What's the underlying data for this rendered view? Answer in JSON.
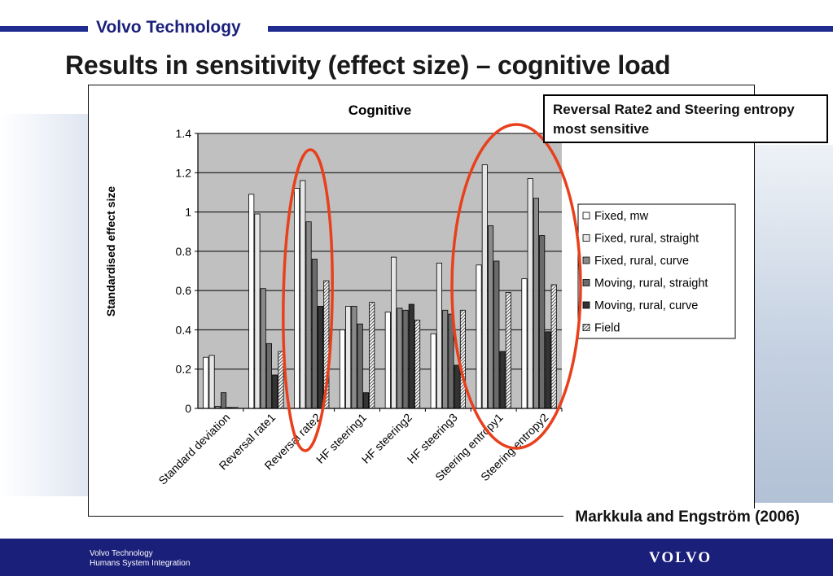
{
  "header": {
    "company": "Volvo Technology",
    "title": "Results in sensitivity (effect size) – cognitive load",
    "rule_color": "#1f2b8f"
  },
  "callout": {
    "text": "Reversal Rate2 and Steering entropy most sensitive",
    "highlight_color": "#e8401c"
  },
  "citation": "Markkula and Engström (2006)",
  "footer": {
    "line1": "Volvo Technology",
    "line2": "Humans System Integration",
    "logo": "VOLVO",
    "background": "#1a1f7a"
  },
  "chart_data": {
    "type": "bar",
    "title": "Cognitive",
    "xlabel": "",
    "ylabel": "Standardised effect size",
    "ylim": [
      0,
      1.4
    ],
    "yticks": [
      "0",
      "0.2",
      "0.4",
      "0.6",
      "0.8",
      "1",
      "1.2",
      "1.4"
    ],
    "grid": true,
    "plot_background": "#c0c0c0",
    "legend_position": "right",
    "categories": [
      "Standard deviation",
      "Reversal rate1",
      "Reversal rate2",
      "HF steering1",
      "HF steering2",
      "HF steering3",
      "Steering entropy1",
      "Steering entropy2"
    ],
    "series": [
      {
        "name": "Fixed, mw",
        "color": "#ffffff",
        "pattern": "solid",
        "values": [
          0.26,
          1.09,
          1.12,
          0.4,
          0.49,
          0.38,
          0.73,
          0.66
        ]
      },
      {
        "name": "Fixed, rural, straight",
        "color": "#e6e6e6",
        "pattern": "solid",
        "values": [
          0.27,
          0.99,
          1.16,
          0.52,
          0.77,
          0.74,
          1.24,
          1.17
        ]
      },
      {
        "name": "Fixed, rural, curve",
        "color": "#8a8a8a",
        "pattern": "solid",
        "values": [
          0.01,
          0.61,
          0.95,
          0.52,
          0.51,
          0.5,
          0.93,
          1.07
        ]
      },
      {
        "name": "Moving, rural, straight",
        "color": "#6b6b6b",
        "pattern": "solid",
        "values": [
          0.08,
          0.33,
          0.76,
          0.43,
          0.5,
          0.48,
          0.75,
          0.88
        ]
      },
      {
        "name": "Moving, rural, curve",
        "color": "#333333",
        "pattern": "solid",
        "values": [
          0.005,
          0.17,
          0.52,
          0.08,
          0.53,
          0.22,
          0.29,
          0.39
        ]
      },
      {
        "name": "Field",
        "color": "#ffffff",
        "pattern": "hatch",
        "values": [
          0.005,
          0.29,
          0.65,
          0.54,
          0.45,
          0.5,
          0.59,
          0.63
        ]
      }
    ]
  }
}
